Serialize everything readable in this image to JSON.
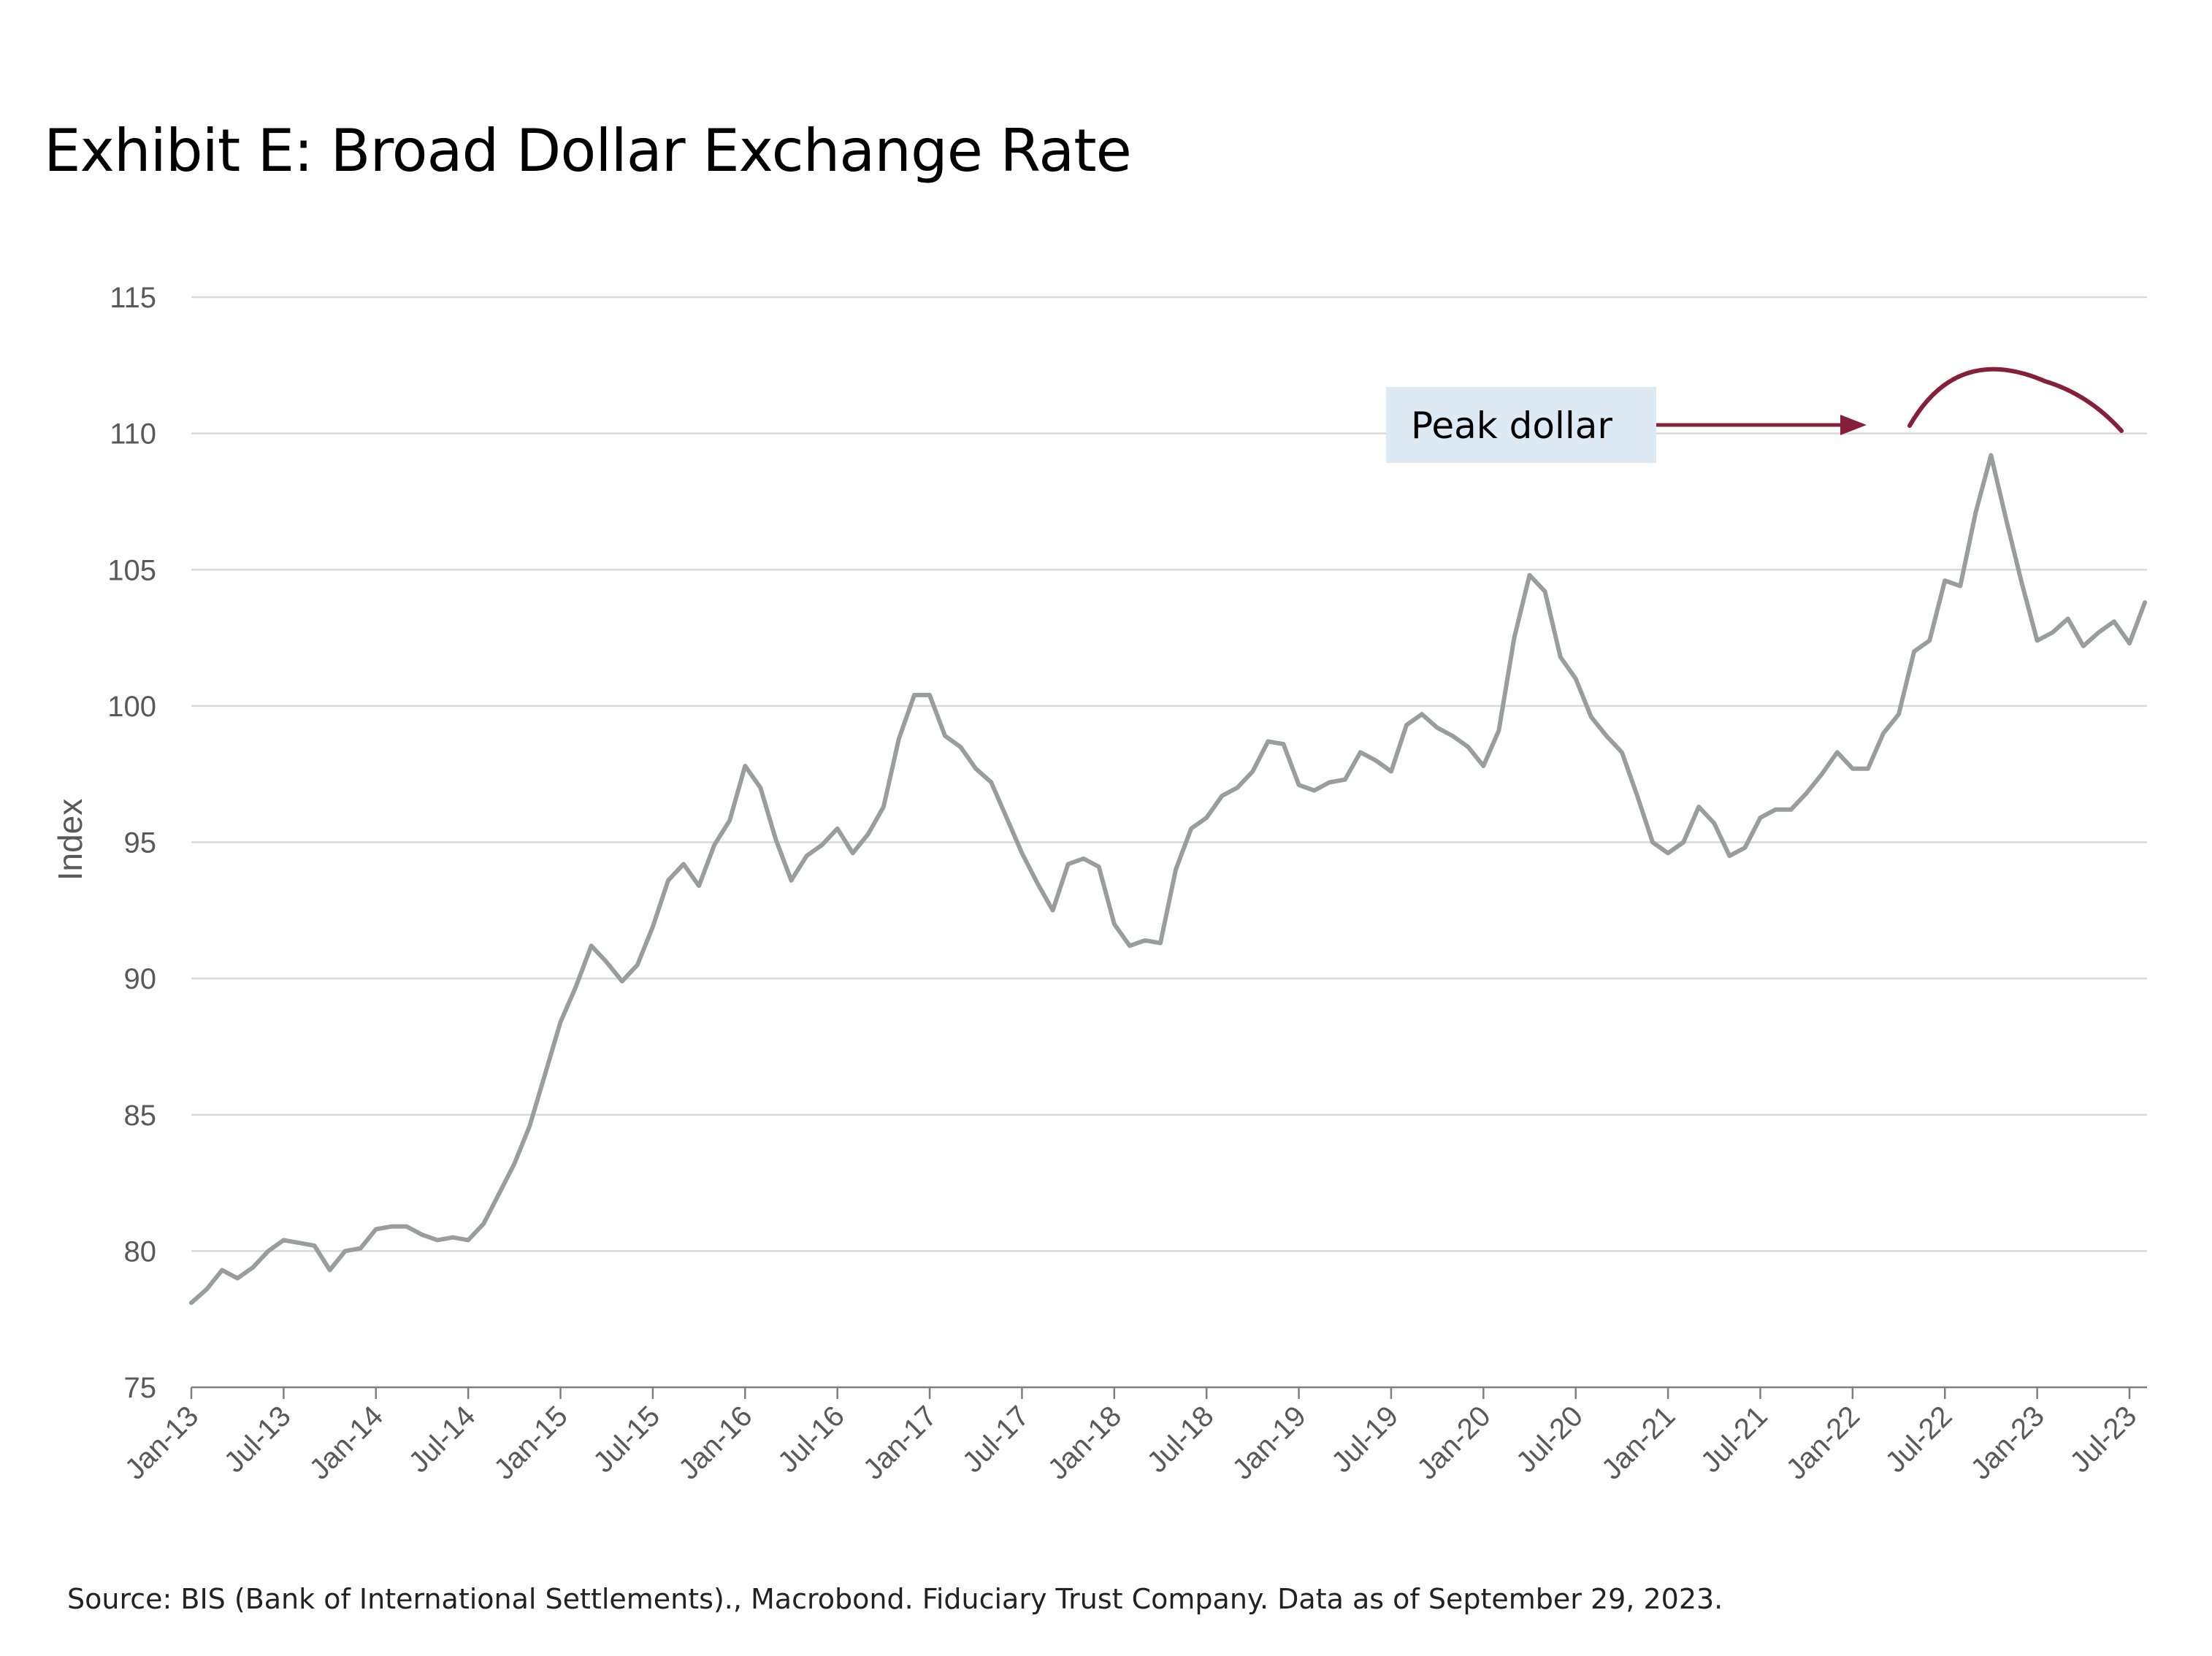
{
  "title": "Exhibit E: Broad Dollar Exchange Rate",
  "source": "Source: BIS (Bank of International Settlements)., Macrobond. Fiduciary Trust Company. Data as of September 29, 2023.",
  "colors": {
    "line": "#9b9c9e",
    "annotation": "#86203a",
    "callout_bg": "#dde9f3",
    "grid": "#d9d9d9",
    "axis": "#7f7f7f"
  },
  "chart_data": {
    "type": "line",
    "ylabel": "Index",
    "ylim": [
      75,
      115
    ],
    "yticks": [
      75,
      80,
      85,
      90,
      95,
      100,
      105,
      110,
      115
    ],
    "xtick_labels": [
      "Jan-13",
      "Jul-13",
      "Jan-14",
      "Jul-14",
      "Jan-15",
      "Jul-15",
      "Jan-16",
      "Jul-16",
      "Jan-17",
      "Jul-17",
      "Jan-18",
      "Jul-18",
      "Jan-19",
      "Jul-19",
      "Jan-20",
      "Jul-20",
      "Jan-21",
      "Jul-21",
      "Jan-22",
      "Jul-22",
      "Jan-23",
      "Jul-23"
    ],
    "grid": true,
    "annotation": "Peak dollar",
    "series": [
      {
        "x_start": "Jan-13",
        "frequency": "monthly",
        "values": [
          78.1,
          78.6,
          79.3,
          79.0,
          79.4,
          80.0,
          80.4,
          80.3,
          80.2,
          79.3,
          80.0,
          80.1,
          80.8,
          80.9,
          80.9,
          80.6,
          80.4,
          80.5,
          80.4,
          81.0,
          82.1,
          83.2,
          84.6,
          86.5,
          88.4,
          89.7,
          91.2,
          90.6,
          89.9,
          90.5,
          91.9,
          93.6,
          94.2,
          93.4,
          94.9,
          95.8,
          97.8,
          97.0,
          95.1,
          93.6,
          94.5,
          94.9,
          95.5,
          94.6,
          95.3,
          96.3,
          98.8,
          100.4,
          100.4,
          98.9,
          98.5,
          97.7,
          97.2,
          95.9,
          94.6,
          93.5,
          92.5,
          94.2,
          94.4,
          94.1,
          92.0,
          91.2,
          91.4,
          91.3,
          94.0,
          95.5,
          95.9,
          96.7,
          97.0,
          97.6,
          98.7,
          98.6,
          97.1,
          96.9,
          97.2,
          97.3,
          98.3,
          98.0,
          97.6,
          99.3,
          99.7,
          99.2,
          98.9,
          98.5,
          97.8,
          99.1,
          102.5,
          104.8,
          104.2,
          101.8,
          101.0,
          99.6,
          98.9,
          98.3,
          96.7,
          95.0,
          94.6,
          95.0,
          96.3,
          95.7,
          94.5,
          94.8,
          95.9,
          96.2,
          96.2,
          96.8,
          97.5,
          98.3,
          97.7,
          97.7,
          99.0,
          99.7,
          102.0,
          102.4,
          104.6,
          104.4,
          107.1,
          109.2,
          106.8,
          104.5,
          102.4,
          102.7,
          103.2,
          102.2,
          102.7,
          103.1,
          102.3,
          103.8
        ]
      }
    ]
  }
}
